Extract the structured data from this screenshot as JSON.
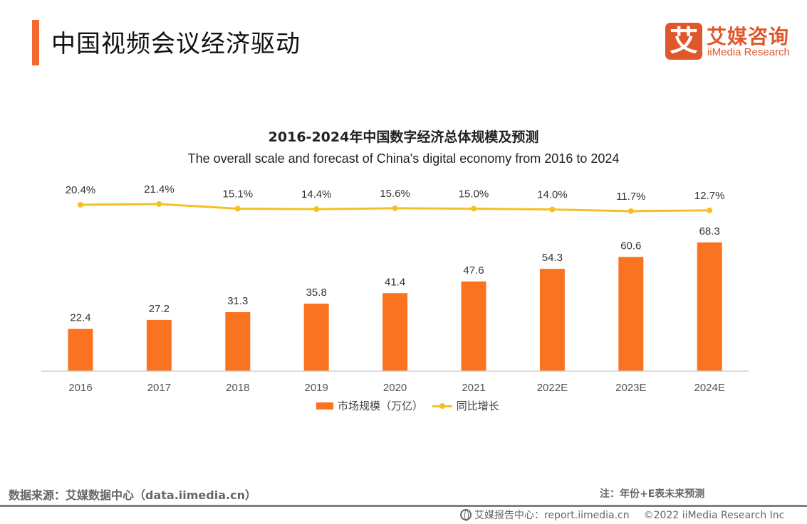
{
  "header": {
    "title": "中国视频会议经济驱动",
    "logo": {
      "mark": "艾",
      "cn": "艾媒咨询",
      "en": "iiMedia Research",
      "color": "#e0572b"
    },
    "accent_color": "#f26a2e"
  },
  "chart_data": {
    "type": "bar",
    "title": "2016-2024年中国数字经济总体规模及预测",
    "subtitle": "The overall scale and forecast of China's digital economy from 2016 to 2024",
    "categories": [
      "2016",
      "2017",
      "2018",
      "2019",
      "2020",
      "2021",
      "2022E",
      "2023E",
      "2024E"
    ],
    "series": [
      {
        "name": "市场规模（万亿）",
        "type": "bar",
        "color": "#f97320",
        "values": [
          22.4,
          27.2,
          31.3,
          35.8,
          41.4,
          47.6,
          54.3,
          60.6,
          68.3
        ],
        "labels": [
          "22.4",
          "27.2",
          "31.3",
          "35.8",
          "41.4",
          "47.6",
          "54.3",
          "60.6",
          "68.3"
        ]
      },
      {
        "name": "同比增长",
        "type": "line",
        "color": "#f5c023",
        "unit": "%",
        "values": [
          20.4,
          21.4,
          15.1,
          14.4,
          15.6,
          15.0,
          14.0,
          11.7,
          12.7
        ],
        "labels": [
          "20.4%",
          "21.4%",
          "15.1%",
          "14.4%",
          "15.6%",
          "15.0%",
          "14.0%",
          "11.7%",
          "12.7%"
        ]
      }
    ],
    "xlabel": "",
    "ylabel": "",
    "ylim": [
      0,
      70
    ],
    "grid": false,
    "legend": "bottom-center"
  },
  "legend": {
    "bar_label": "市场规模（万亿）",
    "line_label": "同比增长"
  },
  "footer": {
    "source": "数据来源：艾媒数据中心（data.iimedia.cn）",
    "note": "注：年份+E表未来预测",
    "report_center": "艾媒报告中心：report.iimedia.cn",
    "copyright": "©2022  iiMedia Research  Inc"
  }
}
